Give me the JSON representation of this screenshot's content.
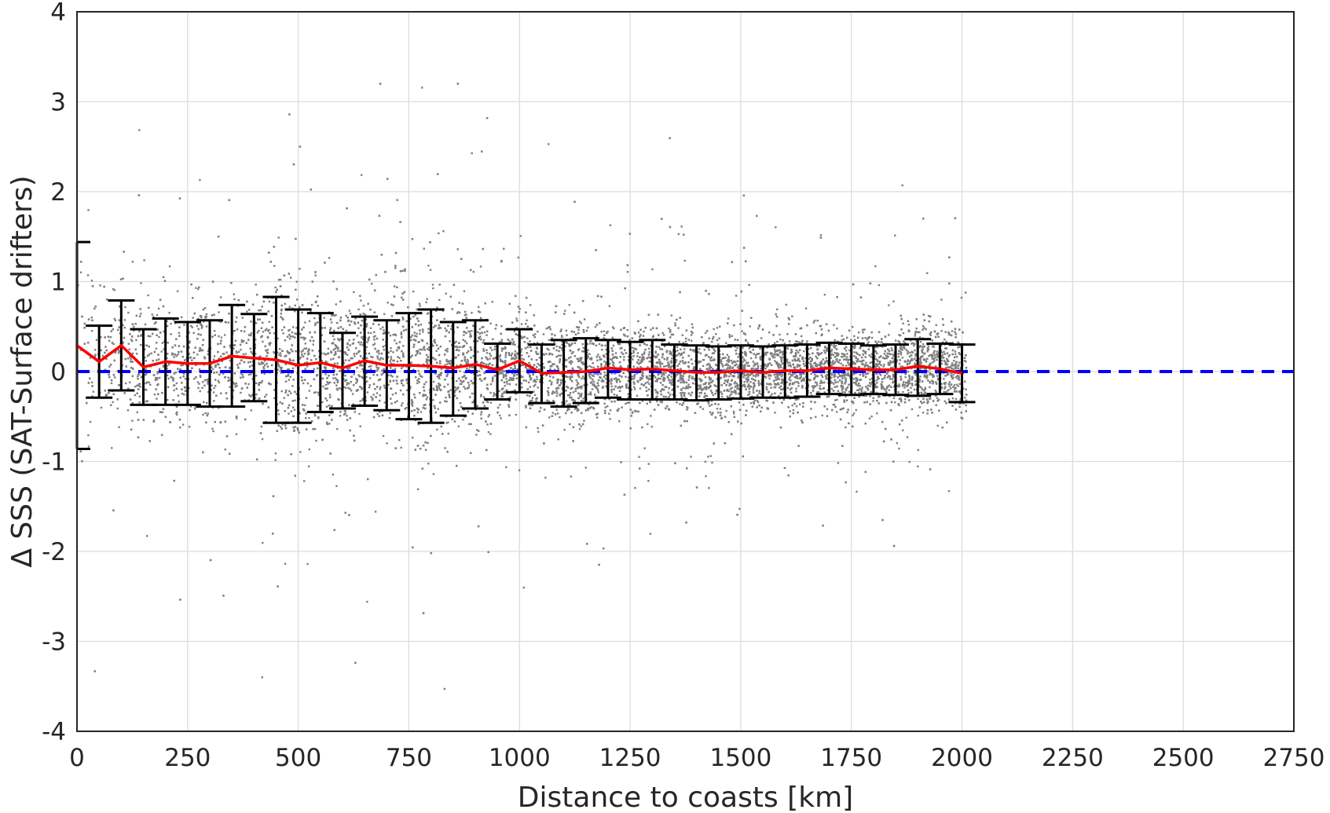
{
  "chart_data": {
    "type": "scatter",
    "title": "",
    "xlabel": "Distance to coasts [km]",
    "ylabel": "Δ SSS (SAT-Surface drifters)",
    "xlim": [
      0,
      2750
    ],
    "ylim": [
      -4,
      4
    ],
    "x_ticks": [
      "0",
      "250",
      "500",
      "750",
      "1000",
      "1250",
      "1500",
      "1750",
      "2000",
      "2250",
      "2500",
      "2750"
    ],
    "y_ticks": [
      "-4",
      "-3",
      "-2",
      "-1",
      "0",
      "1",
      "2",
      "3",
      "4"
    ],
    "grid": true,
    "legend": "none",
    "colors": {
      "scatter": "#7f7f7f",
      "mean_line": "#ff0000",
      "zero_line": "#0000ff",
      "error_bars": "#000000",
      "grid": "#dcdcdc"
    },
    "zero_reference_line": {
      "y": 0,
      "style": "dashed"
    },
    "scatter_cloud": {
      "x_range": [
        0,
        2010
      ],
      "dense_band_y": [
        -0.6,
        0.6
      ],
      "outlier_range_y": [
        -3.8,
        3.2
      ]
    },
    "binned_stats": {
      "x": [
        0,
        50,
        100,
        150,
        200,
        250,
        300,
        350,
        400,
        450,
        500,
        550,
        600,
        650,
        700,
        750,
        800,
        850,
        900,
        950,
        1000,
        1050,
        1100,
        1150,
        1200,
        1250,
        1300,
        1350,
        1400,
        1450,
        1500,
        1550,
        1600,
        1650,
        1700,
        1750,
        1800,
        1850,
        1900,
        1950,
        2000
      ],
      "mean": [
        0.29,
        0.11,
        0.29,
        0.05,
        0.11,
        0.09,
        0.09,
        0.17,
        0.15,
        0.13,
        0.07,
        0.1,
        0.04,
        0.12,
        0.07,
        0.07,
        0.06,
        0.04,
        0.08,
        0.02,
        0.12,
        -0.02,
        -0.01,
        0.0,
        0.04,
        0.02,
        0.03,
        0.01,
        -0.01,
        -0.01,
        0.01,
        -0.01,
        0.01,
        0.01,
        0.04,
        0.03,
        0.02,
        0.02,
        0.06,
        0.03,
        -0.02
      ],
      "upper": [
        1.44,
        0.51,
        0.79,
        0.47,
        0.59,
        0.55,
        0.57,
        0.74,
        0.64,
        0.83,
        0.69,
        0.65,
        0.43,
        0.61,
        0.57,
        0.65,
        0.69,
        0.55,
        0.57,
        0.31,
        0.47,
        0.3,
        0.35,
        0.37,
        0.35,
        0.33,
        0.35,
        0.3,
        0.29,
        0.28,
        0.29,
        0.28,
        0.29,
        0.3,
        0.32,
        0.31,
        0.29,
        0.3,
        0.36,
        0.31,
        0.3
      ],
      "lower": [
        -0.86,
        -0.29,
        -0.21,
        -0.37,
        -0.37,
        -0.37,
        -0.39,
        -0.39,
        -0.33,
        -0.57,
        -0.57,
        -0.45,
        -0.41,
        -0.38,
        -0.43,
        -0.53,
        -0.57,
        -0.49,
        -0.41,
        -0.31,
        -0.23,
        -0.35,
        -0.39,
        -0.35,
        -0.29,
        -0.31,
        -0.31,
        -0.31,
        -0.32,
        -0.31,
        -0.3,
        -0.29,
        -0.29,
        -0.28,
        -0.25,
        -0.26,
        -0.25,
        -0.26,
        -0.27,
        -0.25,
        -0.34
      ]
    }
  }
}
